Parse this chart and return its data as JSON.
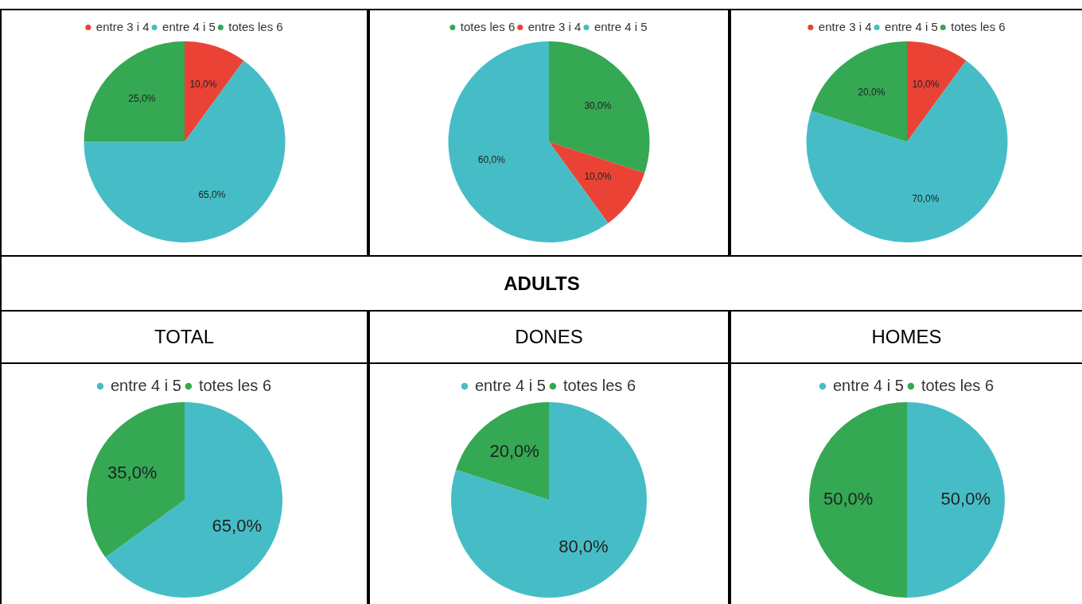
{
  "chart_data": [
    {
      "type": "pie",
      "categories": [
        "entre 3 i 4",
        "entre 4 i 5",
        "totes les 6"
      ],
      "values": [
        10,
        65,
        25
      ],
      "colors": [
        "#ea4335",
        "#46bdc6",
        "#34a853"
      ],
      "value_labels": [
        "10,0%",
        "65,0%",
        "25,0%"
      ],
      "legend": "top"
    },
    {
      "type": "pie",
      "categories": [
        "totes les 6",
        "entre 3 i 4",
        "entre 4 i 5"
      ],
      "values": [
        30,
        10,
        60
      ],
      "colors": [
        "#34a853",
        "#ea4335",
        "#46bdc6"
      ],
      "value_labels": [
        "30,0%",
        "10,0%",
        "60,0%"
      ],
      "legend": "top"
    },
    {
      "type": "pie",
      "categories": [
        "entre 3 i 4",
        "entre 4 i 5",
        "totes les 6"
      ],
      "values": [
        10,
        70,
        20
      ],
      "colors": [
        "#ea4335",
        "#46bdc6",
        "#34a853"
      ],
      "value_labels": [
        "10,0%",
        "70,0%",
        "20,0%"
      ],
      "legend": "top"
    },
    {
      "type": "other",
      "title": "ADULTS"
    },
    {
      "type": "pie",
      "title": "TOTAL",
      "categories": [
        "entre 4 i 5",
        "totes les 6"
      ],
      "values": [
        65,
        35
      ],
      "colors": [
        "#46bdc6",
        "#34a853"
      ],
      "value_labels": [
        "65,0%",
        "35,0%"
      ],
      "legend": "top"
    },
    {
      "type": "pie",
      "title": "DONES",
      "categories": [
        "entre 4 i 5",
        "totes les 6"
      ],
      "values": [
        80,
        20
      ],
      "colors": [
        "#46bdc6",
        "#34a853"
      ],
      "value_labels": [
        "80,0%",
        "20,0%"
      ],
      "legend": "top"
    },
    {
      "type": "pie",
      "title": "HOMES",
      "categories": [
        "entre 4 i 5",
        "totes les 6"
      ],
      "values": [
        50,
        50
      ],
      "colors": [
        "#46bdc6",
        "#34a853"
      ],
      "value_labels": [
        "50,0%",
        "50,0%"
      ],
      "legend": "top"
    }
  ]
}
